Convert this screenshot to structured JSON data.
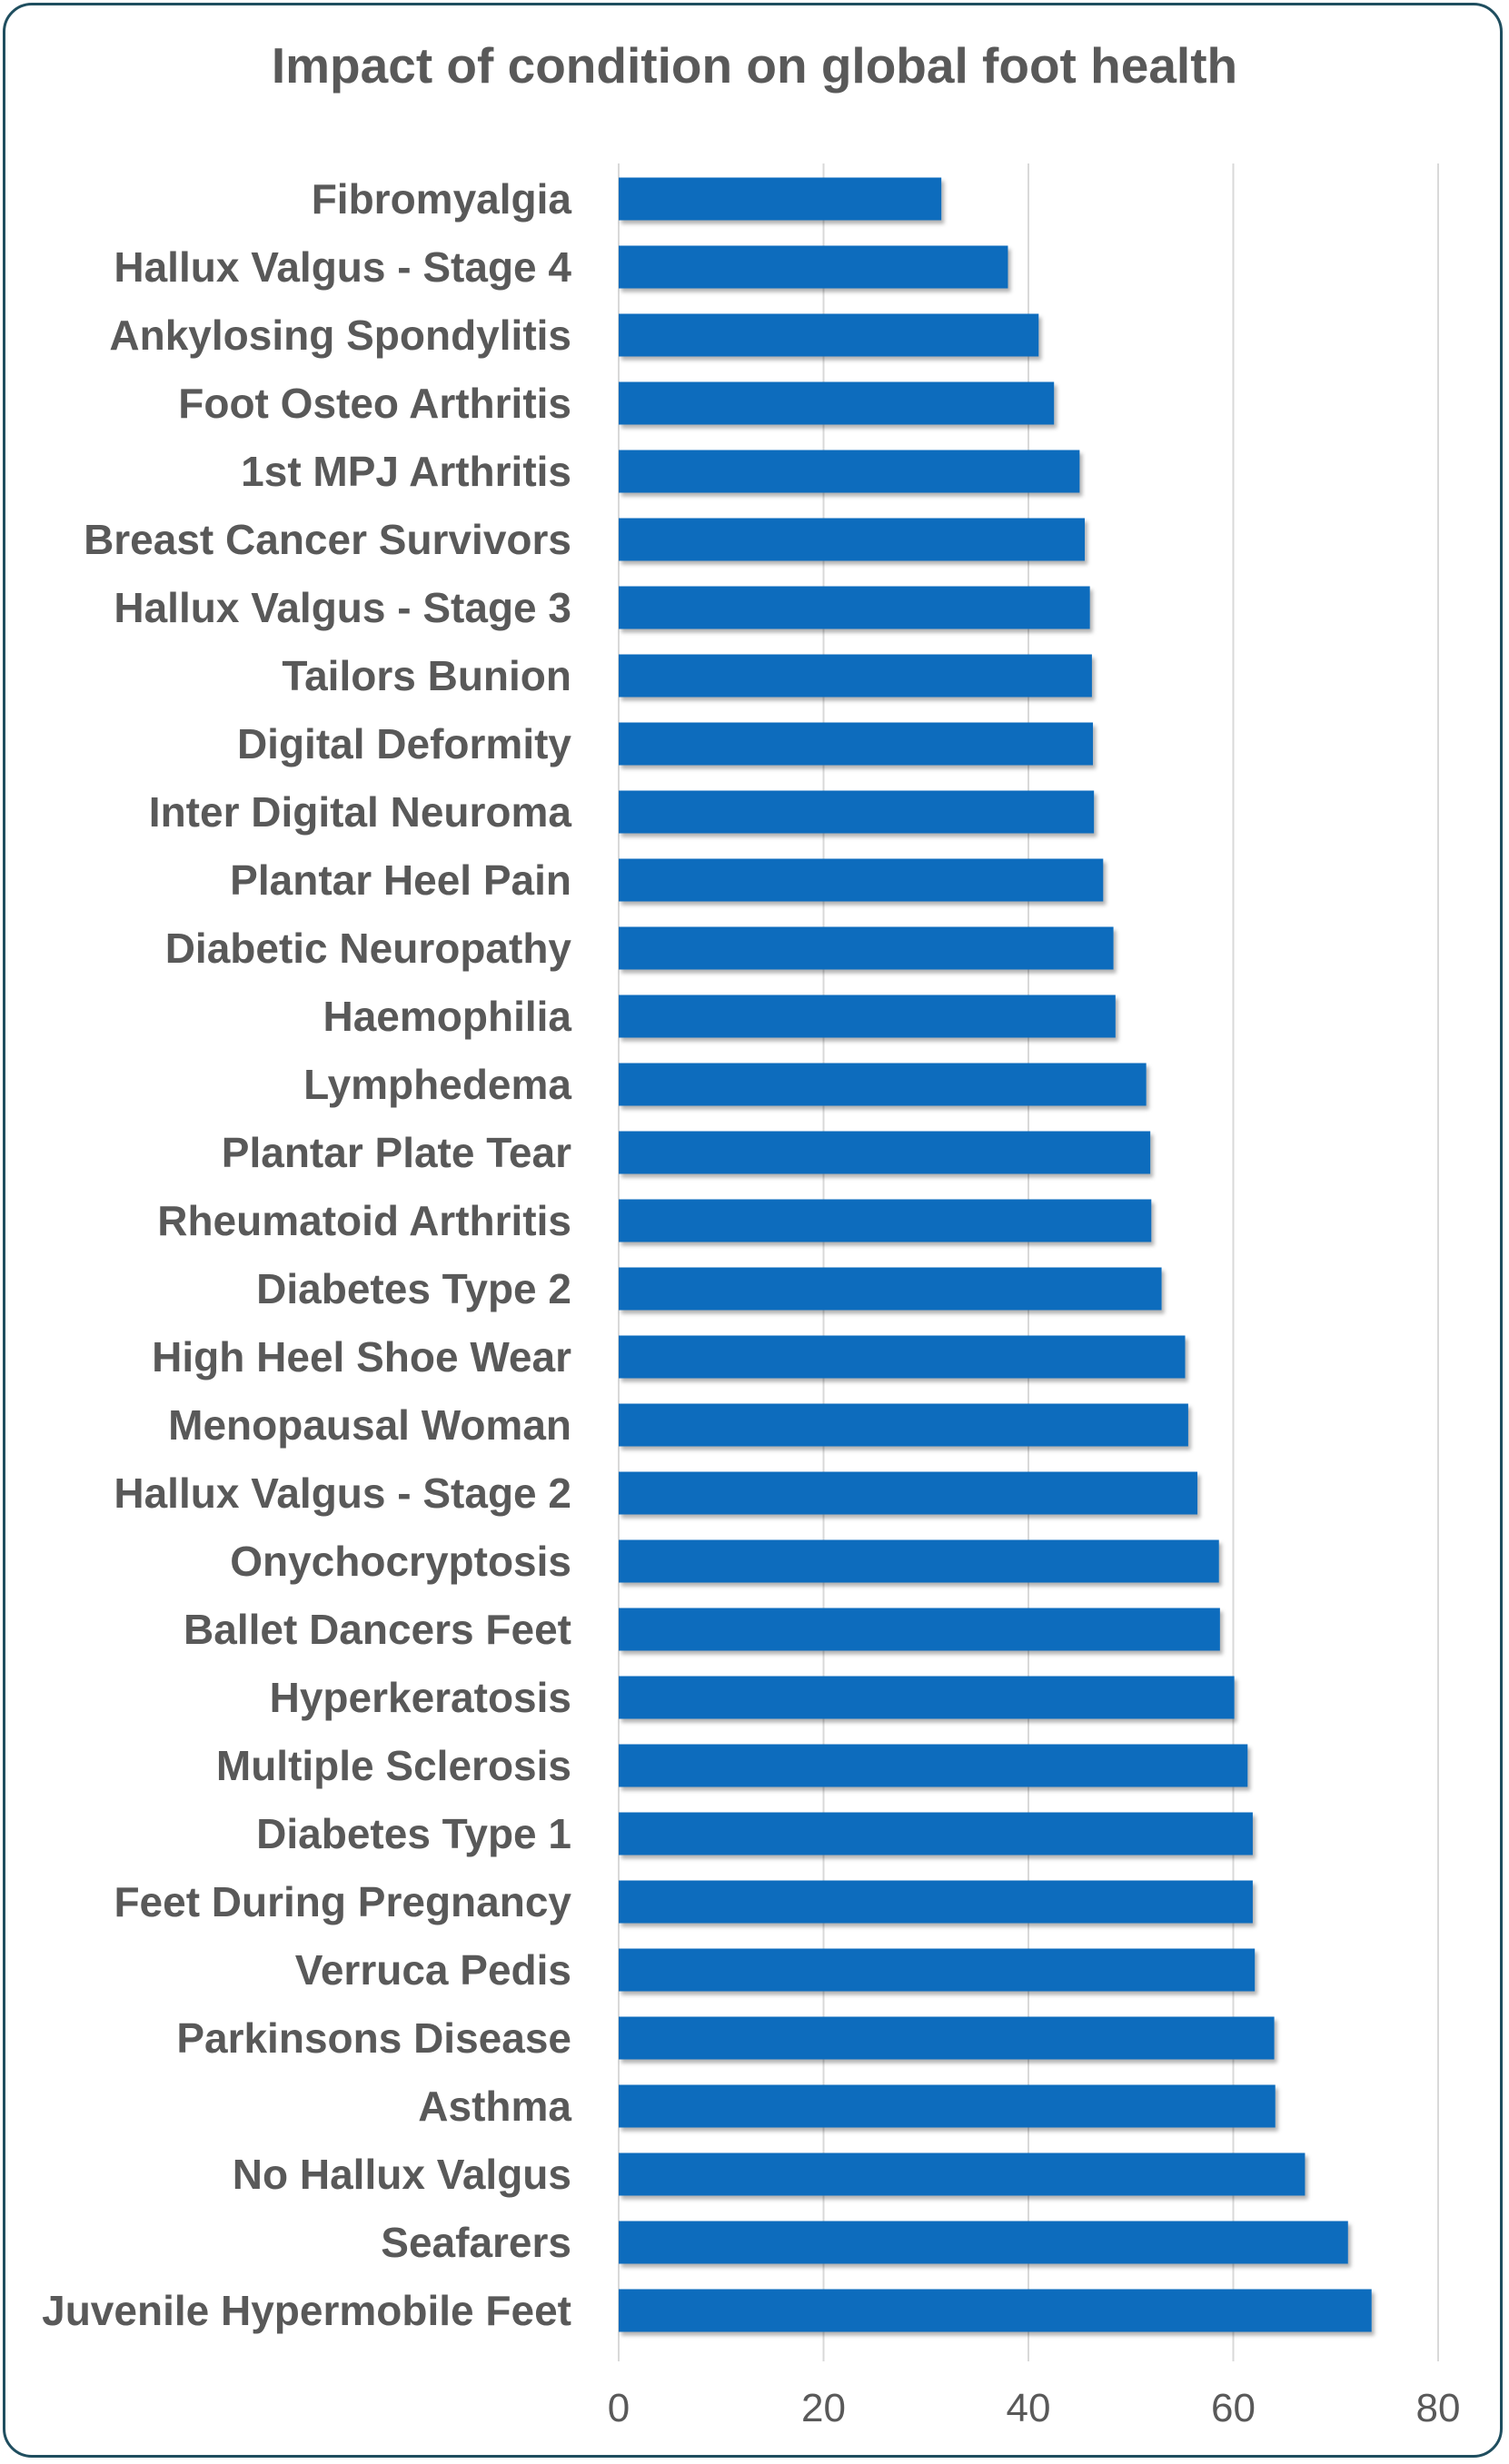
{
  "chart_data": {
    "type": "bar",
    "orientation": "horizontal",
    "title": "Impact of condition on global foot health",
    "xlabel": "",
    "ylabel": "",
    "xlim": [
      0,
      80
    ],
    "x_ticks": [
      0,
      20,
      40,
      60,
      80
    ],
    "grid": true,
    "bar_color": "#0F6CBD",
    "categories": [
      "Fibromyalgia",
      "Hallux Valgus - Stage 4",
      "Ankylosing Spondylitis",
      "Foot Osteo Arthritis",
      "1st MPJ Arthritis",
      "Breast Cancer Survivors",
      "Hallux Valgus - Stage 3",
      "Tailors Bunion",
      "Digital Deformity",
      "Inter Digital Neuroma",
      "Plantar Heel Pain",
      "Diabetic Neuropathy",
      "Haemophilia",
      "Lymphedema",
      "Plantar Plate Tear",
      "Rheumatoid Arthritis",
      "Diabetes Type 2",
      "High Heel Shoe Wear",
      "Menopausal Woman",
      "Hallux Valgus - Stage 2",
      "Onychocryptosis",
      "Ballet Dancers Feet",
      "Hyperkeratosis",
      "Multiple Sclerosis",
      "Diabetes Type 1",
      "Feet During Pregnancy",
      "Verruca Pedis",
      "Parkinsons Disease",
      "Asthma",
      "No Hallux Valgus",
      "Seafarers",
      "Juvenile Hypermobile Feet"
    ],
    "values": [
      31.5,
      38,
      41,
      42.5,
      45,
      45.5,
      46,
      46.2,
      46.3,
      46.4,
      47.3,
      48.3,
      48.5,
      51.5,
      51.9,
      52,
      53,
      55.3,
      55.6,
      56.5,
      58.6,
      58.7,
      60.1,
      61.4,
      61.9,
      61.9,
      62.1,
      64,
      64.1,
      67,
      71.2,
      73.5
    ]
  },
  "colors": {
    "bar": "#0F6CBD",
    "text": "#595959",
    "grid": "#D9D9D9",
    "frame": "#1F4E5F"
  }
}
